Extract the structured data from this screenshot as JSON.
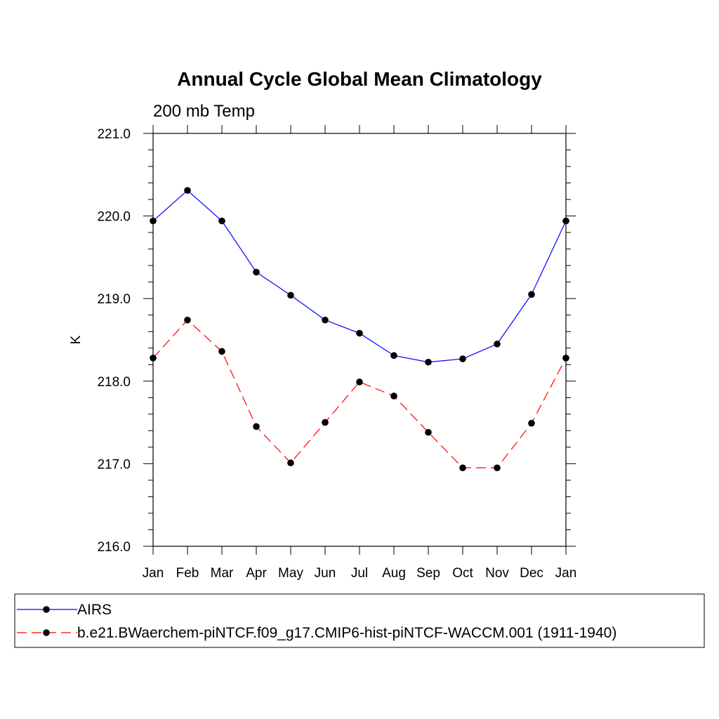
{
  "chart_data": {
    "type": "line",
    "title": "Annual Cycle Global Mean Climatology",
    "subtitle": "200 mb Temp",
    "xlabel": "",
    "ylabel": "K",
    "categories": [
      "Jan",
      "Feb",
      "Mar",
      "Apr",
      "May",
      "Jun",
      "Jul",
      "Aug",
      "Sep",
      "Oct",
      "Nov",
      "Dec",
      "Jan"
    ],
    "ylim": [
      216.0,
      221.0
    ],
    "yticks": [
      "216.0",
      "217.0",
      "218.0",
      "219.0",
      "220.0",
      "221.0"
    ],
    "grid": false,
    "legend_position": "bottom",
    "series": [
      {
        "name": "AIRS",
        "color": "#0000ff",
        "dash": "solid",
        "marker": "filled-circle",
        "values": [
          219.94,
          220.31,
          219.94,
          219.32,
          219.04,
          218.74,
          218.58,
          218.31,
          218.23,
          218.27,
          218.45,
          219.05,
          219.94
        ]
      },
      {
        "name": "b.e21.BWaerchem-piNTCF.f09_g17.CMIP6-hist-piNTCF-WACCM.001 (1911-1940)",
        "color": "#ff0000",
        "dash": "dashed",
        "marker": "filled-circle",
        "values": [
          218.28,
          218.74,
          218.36,
          217.45,
          217.01,
          217.5,
          217.99,
          217.82,
          217.38,
          216.95,
          216.95,
          217.49,
          218.28
        ]
      }
    ]
  }
}
